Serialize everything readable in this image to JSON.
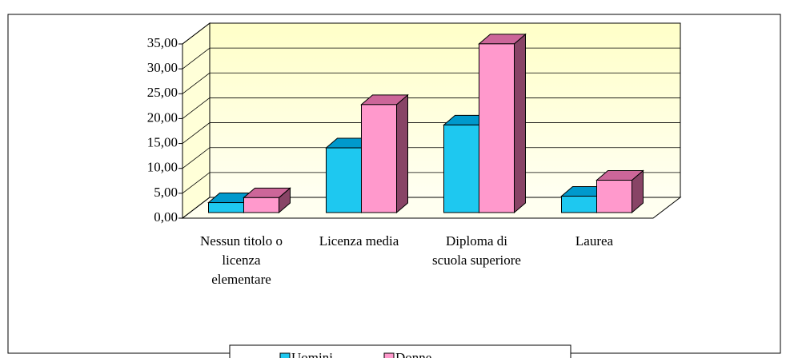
{
  "chart_data": {
    "type": "bar3d",
    "categories": [
      [
        "Nessun titolo o",
        "licenza",
        "elementare"
      ],
      [
        "Licenza media"
      ],
      [
        "Diploma di",
        "scuola superiore"
      ],
      [
        "Laurea"
      ]
    ],
    "series": [
      {
        "name": "Uomini",
        "color": "#1ec8f0",
        "values": [
          2.0,
          13.0,
          17.6,
          3.3
        ]
      },
      {
        "name": "Donne",
        "color": "#ff99cc",
        "values": [
          3.0,
          21.7,
          33.9,
          6.5
        ]
      }
    ],
    "ylim": [
      0,
      35
    ],
    "yticks": [
      {
        "value": 0,
        "label": "0,00"
      },
      {
        "value": 5,
        "label": "5,00"
      },
      {
        "value": 10,
        "label": "10,00"
      },
      {
        "value": 15,
        "label": "15,00"
      },
      {
        "value": 20,
        "label": "20,00"
      },
      {
        "value": 25,
        "label": "25,00"
      },
      {
        "value": 30,
        "label": "30,00"
      },
      {
        "value": 35,
        "label": "35,00"
      }
    ],
    "grid": true
  }
}
